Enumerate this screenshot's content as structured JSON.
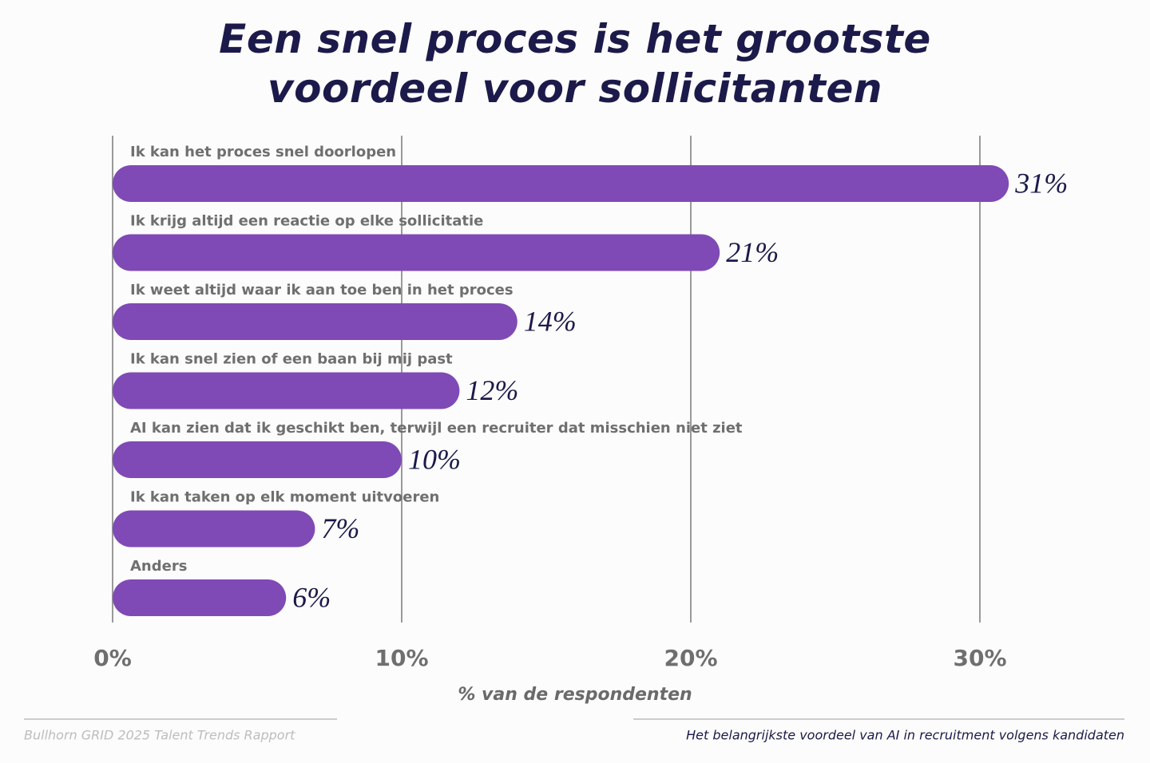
{
  "chart_data": {
    "type": "bar",
    "orientation": "horizontal",
    "title": "Een snel proces is het grootste voordeel voor sollicitanten",
    "categories": [
      "Ik kan het proces snel doorlopen",
      "Ik krijg altijd een reactie op elke sollicitatie",
      "Ik weet altijd waar ik aan toe ben in het proces",
      "Ik kan snel zien of een baan bij mij past",
      "AI kan zien dat ik geschikt ben, terwijl een recruiter dat misschien niet ziet",
      "Ik kan taken op elk moment uitvoeren",
      "Anders"
    ],
    "values": [
      31,
      21,
      14,
      12,
      10,
      7,
      6
    ],
    "value_labels": [
      "31%",
      "21%",
      "14%",
      "12%",
      "10%",
      "7%",
      "6%"
    ],
    "color": "#7f4ab5",
    "xlim": [
      0,
      33
    ],
    "xticks": [
      {
        "value": 0,
        "label": "0%"
      },
      {
        "value": 10,
        "label": "10%"
      },
      {
        "value": 20,
        "label": "20%"
      },
      {
        "value": 30,
        "label": "30%"
      }
    ],
    "xlabel": "% van de respondenten",
    "grid": true,
    "source": "Bullhorn GRID 2025 Talent Trends Rapport",
    "note": "Het belangrijkste voordeel van AI in recruitment volgens kandidaten"
  }
}
